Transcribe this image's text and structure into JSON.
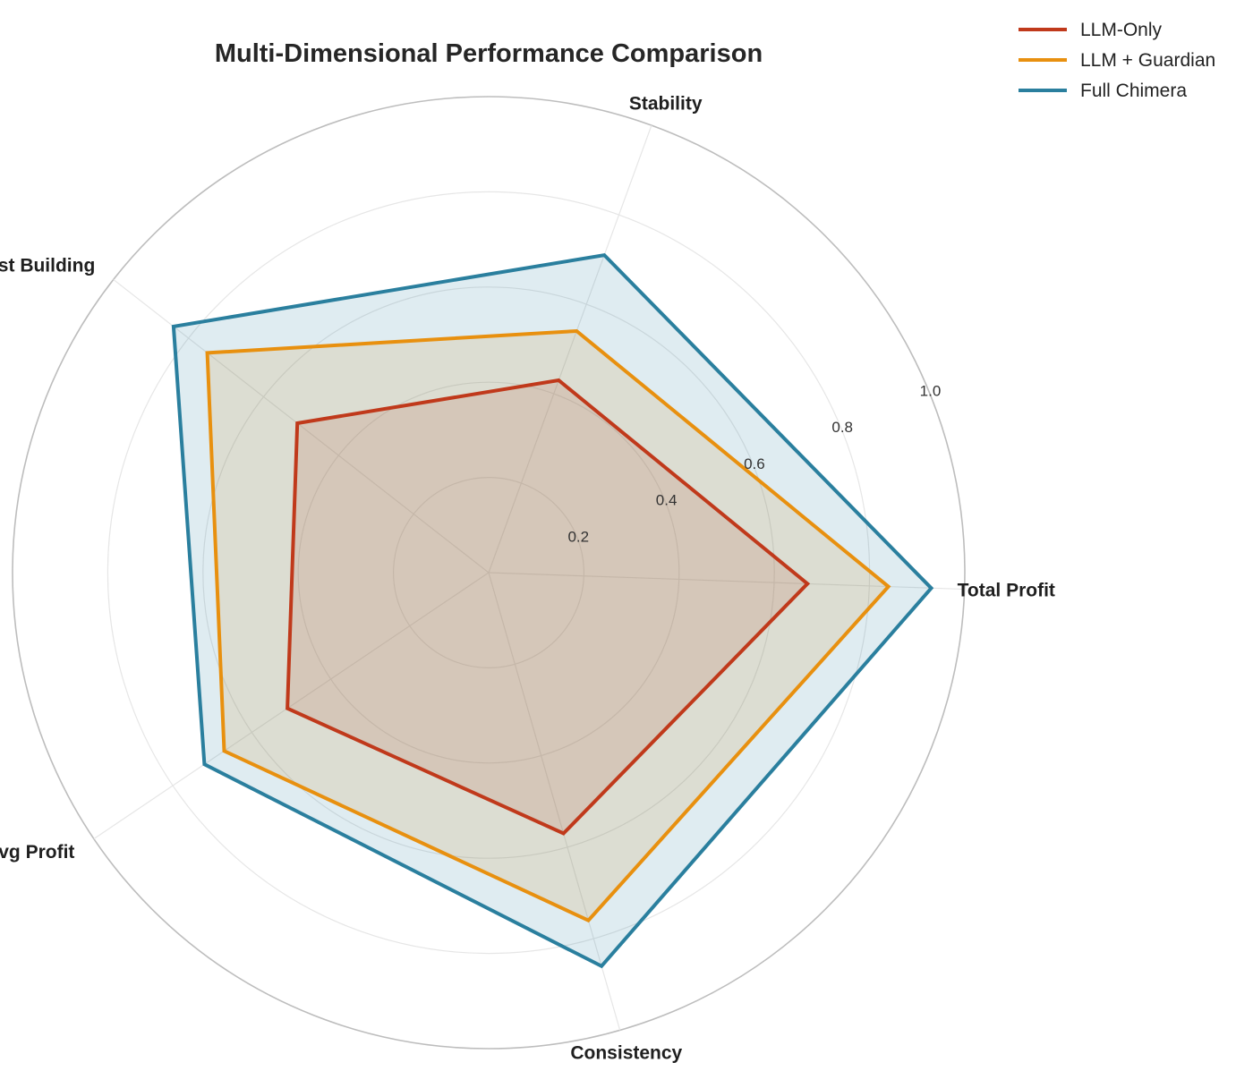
{
  "chart_data": {
    "type": "radar",
    "title": "Multi-Dimensional Performance Comparison",
    "axes": [
      "Total Profit",
      "Stability",
      "Trust Building",
      "Avg Profit",
      "Consistency"
    ],
    "rlim": [
      0,
      1.0
    ],
    "r_ticks": [
      0.2,
      0.4,
      0.6,
      0.8,
      1.0
    ],
    "r_tick_labels": [
      "0.2",
      "0.4",
      "0.6",
      "0.8",
      "1.0"
    ],
    "grid": true,
    "legend_position": "top-right",
    "series": [
      {
        "name": "LLM-Only",
        "color": "#c0391b",
        "fill_opacity": 0.15,
        "values": [
          0.67,
          0.43,
          0.51,
          0.51,
          0.57
        ]
      },
      {
        "name": "LLM + Guardian",
        "color": "#e8900f",
        "fill_opacity": 0.15,
        "values": [
          0.84,
          0.54,
          0.75,
          0.67,
          0.76
        ]
      },
      {
        "name": "Full Chimera",
        "color": "#2a7f9e",
        "fill_opacity": 0.15,
        "values": [
          0.93,
          0.71,
          0.84,
          0.72,
          0.86
        ]
      }
    ]
  }
}
